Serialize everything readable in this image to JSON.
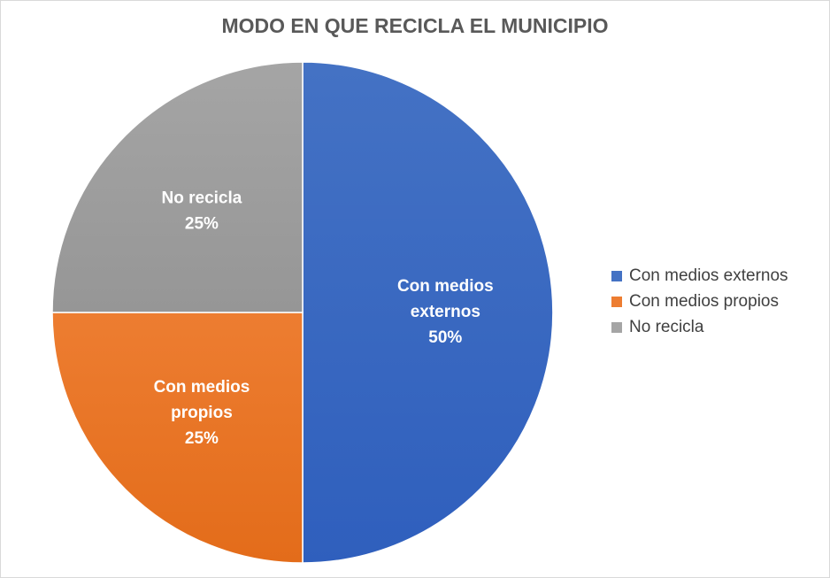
{
  "chart_data": {
    "type": "pie",
    "title": "MODO EN QUE RECICLA EL MUNICIPIO",
    "slices": [
      {
        "label": "Con medios externos",
        "label_lines": [
          "Con medios",
          "externos"
        ],
        "value_label": "50%",
        "value": 50,
        "color": "#4472c4",
        "color_dark": "#2f5fbd"
      },
      {
        "label": "Con medios propios",
        "label_lines": [
          "Con medios",
          "propios"
        ],
        "value_label": "25%",
        "value": 25,
        "color": "#ed7d31",
        "color_dark": "#e36c1a"
      },
      {
        "label": "No recicla",
        "label_lines": [
          "No recicla"
        ],
        "value_label": "25%",
        "value": 25,
        "color": "#a5a5a5",
        "color_dark": "#969696"
      }
    ],
    "legend_position": "right",
    "start_angle": "12 o'clock",
    "direction": "clockwise"
  }
}
